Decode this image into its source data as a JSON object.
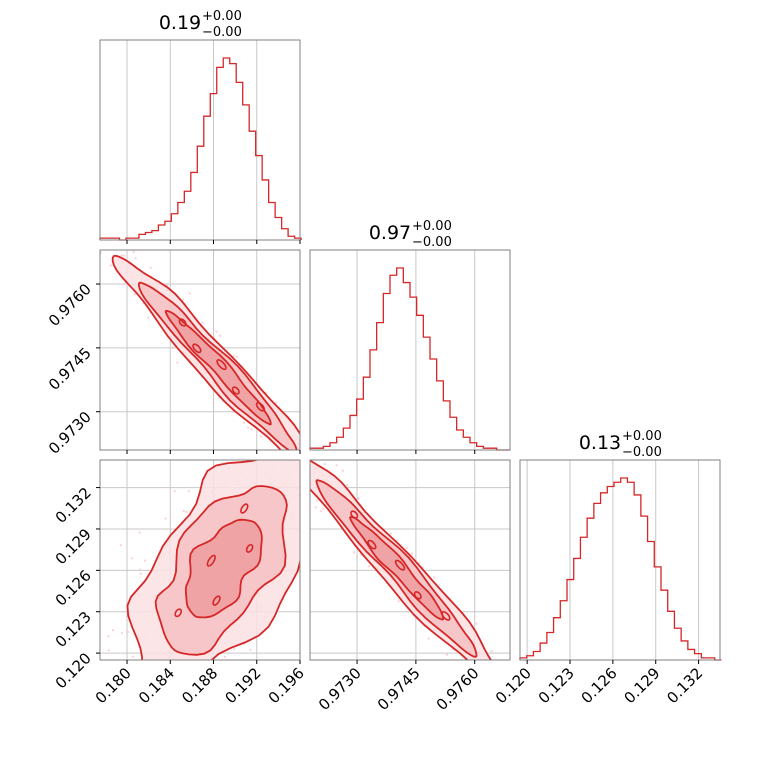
{
  "figure": {
    "type": "corner-plot",
    "accent_color": "#d62728",
    "fill_color": "#f2b8ba",
    "scatter_color": "#f5c6c8",
    "frame_color": "#808080",
    "grid_color": "#c8c8c8"
  },
  "chart_data": [
    {
      "type": "histogram",
      "id": "diag-0",
      "title": {
        "value": "0.19",
        "plus": "+0.00",
        "minus": "−0.00"
      },
      "xlim": [
        0.1775,
        0.196
      ],
      "grid": true,
      "x": [
        0.1775,
        0.1781,
        0.1787,
        0.1793,
        0.1799,
        0.1805,
        0.1811,
        0.1817,
        0.1823,
        0.1829,
        0.1835,
        0.1841,
        0.1847,
        0.1853,
        0.1859,
        0.1865,
        0.1871,
        0.1877,
        0.1883,
        0.1889,
        0.1895,
        0.1901,
        0.1907,
        0.1913,
        0.1919,
        0.1925,
        0.1931,
        0.1937,
        0.1943,
        0.1949,
        0.1955
      ],
      "counts": [
        1,
        1,
        1,
        0,
        1,
        1,
        3,
        4,
        5,
        8,
        10,
        14,
        20,
        26,
        36,
        50,
        66,
        78,
        92,
        97,
        94,
        84,
        72,
        58,
        45,
        32,
        20,
        12,
        6,
        2,
        1
      ]
    },
    {
      "type": "histogram",
      "id": "diag-1",
      "title": {
        "value": "0.97",
        "plus": "+0.00",
        "minus": "−0.00"
      },
      "xlim": [
        0.9718,
        0.9769
      ],
      "grid": true,
      "x": [
        0.9718,
        0.97197,
        0.97214,
        0.97231,
        0.97248,
        0.97265,
        0.97282,
        0.97299,
        0.97316,
        0.97333,
        0.9735,
        0.97367,
        0.97384,
        0.97401,
        0.97418,
        0.97435,
        0.97452,
        0.97469,
        0.97486,
        0.97503,
        0.9752,
        0.97537,
        0.97554,
        0.97571,
        0.97588,
        0.97605,
        0.97622,
        0.97639,
        0.97656,
        0.97673
      ],
      "counts": [
        1,
        1,
        2,
        4,
        7,
        12,
        19,
        28,
        40,
        55,
        70,
        86,
        96,
        100,
        92,
        84,
        74,
        62,
        50,
        38,
        27,
        18,
        11,
        7,
        4,
        2,
        1,
        1,
        0,
        0
      ]
    },
    {
      "type": "histogram",
      "id": "diag-2",
      "title": {
        "value": "0.13",
        "plus": "+0.00",
        "minus": "−0.00"
      },
      "xlim": [
        0.1195,
        0.1335
      ],
      "grid": true,
      "x": [
        0.1195,
        0.11997,
        0.12044,
        0.12091,
        0.12138,
        0.12185,
        0.12232,
        0.12279,
        0.12326,
        0.12373,
        0.1242,
        0.12467,
        0.12514,
        0.12561,
        0.12608,
        0.12655,
        0.12702,
        0.12749,
        0.12796,
        0.12843,
        0.1289,
        0.12937,
        0.12984,
        0.13031,
        0.13078,
        0.13125,
        0.13172,
        0.13219,
        0.13266,
        0.13313
      ],
      "counts": [
        1,
        2,
        4,
        8,
        13,
        20,
        28,
        38,
        48,
        58,
        67,
        74,
        79,
        82,
        84,
        86,
        84,
        78,
        68,
        56,
        44,
        33,
        23,
        15,
        9,
        5,
        3,
        1,
        1,
        0
      ]
    },
    {
      "type": "contour",
      "id": "pair-1-0",
      "xlim": [
        0.1775,
        0.196
      ],
      "ylim": [
        0.9721,
        0.9768
      ],
      "grid": true,
      "center": [
        0.1885,
        0.97405
      ],
      "axis_dir": [
        0.01,
        -0.00275
      ],
      "half_len": [
        0.48,
        0.72,
        0.95
      ],
      "half_wid": [
        0.00012,
        0.00018,
        0.00024
      ],
      "scatter_spread": [
        0.011,
        0.00035
      ]
    },
    {
      "type": "contour",
      "id": "pair-2-0",
      "xlim": [
        0.1775,
        0.196
      ],
      "ylim": [
        0.1195,
        0.134
      ],
      "grid": true,
      "center": [
        0.1888,
        0.1262
      ],
      "axis_dir": [
        0.0085,
        0.0105
      ],
      "half_len": [
        0.32,
        0.55,
        0.78
      ],
      "half_wid": [
        0.0011,
        0.0016,
        0.0021
      ],
      "scatter_spread": [
        0.012,
        0.009
      ]
    },
    {
      "type": "contour",
      "id": "pair-2-1",
      "xlim": [
        0.9718,
        0.9769
      ],
      "ylim": [
        0.1195,
        0.134
      ],
      "grid": true,
      "center": [
        0.97403,
        0.1262
      ],
      "axis_dir": [
        0.00325,
        -0.0102
      ],
      "half_len": [
        0.36,
        0.62,
        0.85
      ],
      "half_wid": [
        0.00014,
        0.0002,
        0.00026
      ],
      "scatter_spread": [
        0.0036,
        0.0105
      ]
    }
  ],
  "axes": {
    "x0_ticks": [
      "0.180",
      "0.184",
      "0.188",
      "0.192",
      "0.196"
    ],
    "x0_tick_values": [
      0.18,
      0.184,
      0.188,
      0.192,
      0.196
    ],
    "x1_ticks": [
      "0.9730",
      "0.9745",
      "0.9760"
    ],
    "x1_tick_values": [
      0.973,
      0.9745,
      0.976
    ],
    "x2_ticks": [
      "0.120",
      "0.123",
      "0.126",
      "0.129",
      "0.132"
    ],
    "x2_tick_values": [
      0.12,
      0.123,
      0.126,
      0.129,
      0.132
    ],
    "y1_ticks": [
      "0.9730",
      "0.9745",
      "0.9760"
    ],
    "y1_tick_values": [
      0.973,
      0.9745,
      0.976
    ],
    "y2_ticks": [
      "0.120",
      "0.123",
      "0.126",
      "0.129",
      "0.132"
    ],
    "y2_tick_values": [
      0.12,
      0.123,
      0.126,
      0.129,
      0.132
    ]
  }
}
